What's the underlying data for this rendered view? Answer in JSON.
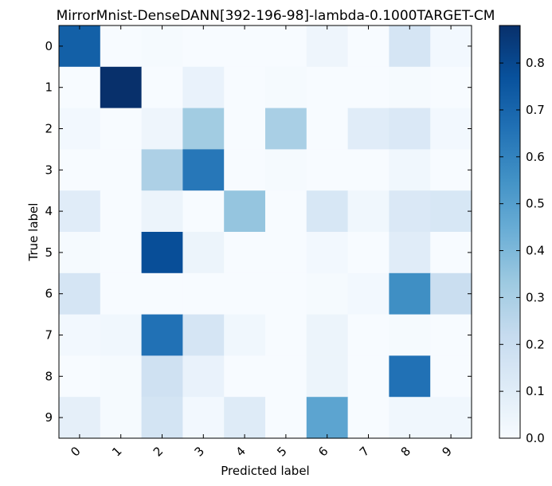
{
  "chart_data": {
    "type": "heatmap",
    "title": "MirrorMnist-DenseDANN[392-196-98]-lambda-0.1000TARGET-CM",
    "xlabel": "Predicted label",
    "ylabel": "True label",
    "x_categories": [
      "0",
      "1",
      "2",
      "3",
      "4",
      "5",
      "6",
      "7",
      "8",
      "9"
    ],
    "y_categories": [
      "0",
      "1",
      "2",
      "3",
      "4",
      "5",
      "6",
      "7",
      "8",
      "9"
    ],
    "values": [
      [
        0.72,
        0.0,
        0.01,
        0.0,
        0.0,
        0.0,
        0.04,
        0.0,
        0.15,
        0.02
      ],
      [
        0.0,
        0.88,
        0.0,
        0.06,
        0.0,
        0.01,
        0.0,
        0.0,
        0.01,
        0.0
      ],
      [
        0.02,
        0.0,
        0.04,
        0.32,
        0.0,
        0.3,
        0.0,
        0.1,
        0.13,
        0.02
      ],
      [
        0.0,
        0.0,
        0.29,
        0.64,
        0.0,
        0.01,
        0.0,
        0.0,
        0.03,
        0.0
      ],
      [
        0.1,
        0.0,
        0.05,
        0.0,
        0.35,
        0.0,
        0.14,
        0.03,
        0.13,
        0.14
      ],
      [
        0.01,
        0.0,
        0.78,
        0.05,
        0.0,
        0.0,
        0.02,
        0.0,
        0.1,
        0.0
      ],
      [
        0.15,
        0.0,
        0.0,
        0.0,
        0.0,
        0.0,
        0.01,
        0.02,
        0.56,
        0.2
      ],
      [
        0.02,
        0.03,
        0.66,
        0.15,
        0.03,
        0.0,
        0.05,
        0.0,
        0.01,
        0.0
      ],
      [
        0.0,
        0.01,
        0.18,
        0.06,
        0.0,
        0.0,
        0.05,
        0.0,
        0.66,
        0.0
      ],
      [
        0.08,
        0.01,
        0.16,
        0.02,
        0.11,
        0.0,
        0.48,
        0.0,
        0.03,
        0.03
      ]
    ],
    "colorbar": {
      "min": 0.0,
      "max": 0.88,
      "ticks": [
        0.0,
        0.1,
        0.2,
        0.3,
        0.4,
        0.5,
        0.6,
        0.7,
        0.8
      ],
      "tick_labels": [
        "0.0",
        "0.1",
        "0.2",
        "0.3",
        "0.4",
        "0.5",
        "0.6",
        "0.7",
        "0.8"
      ]
    },
    "colormap": [
      "#f7fbff",
      "#deebf7",
      "#c6dbef",
      "#9ecae1",
      "#6baed6",
      "#4292c6",
      "#2171b5",
      "#08519c",
      "#08306b"
    ]
  }
}
